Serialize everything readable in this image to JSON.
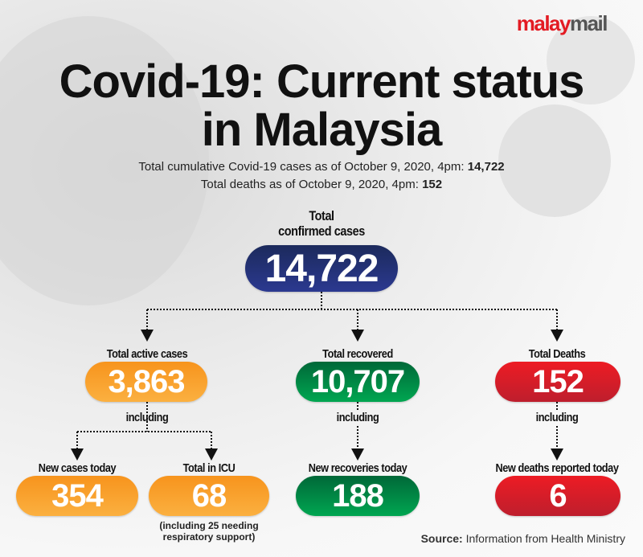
{
  "logo": {
    "part1": "malay",
    "part2": "mail"
  },
  "title": {
    "line1": "Covid-19: Current status",
    "line2": "in Malaysia"
  },
  "subtitle": {
    "cumulative_label": "Total cumulative Covid-19 cases as of October 9, 2020, 4pm:",
    "cumulative_value": "14,722",
    "deaths_label": "Total deaths as of October 9, 2020, 4pm:",
    "deaths_value": "152"
  },
  "total": {
    "label_line1": "Total",
    "label_line2": "confirmed cases",
    "value": "14,722"
  },
  "active": {
    "label": "Total active cases",
    "value": "3,863",
    "including": "including"
  },
  "recovered": {
    "label": "Total recovered",
    "value": "10,707",
    "including": "including"
  },
  "deaths": {
    "label": "Total Deaths",
    "value": "152",
    "including": "including"
  },
  "new_cases": {
    "label": "New cases today",
    "value": "354"
  },
  "icu": {
    "label": "Total in ICU",
    "value": "68",
    "note_line1": "(including 25 needing",
    "note_line2": "respiratory support)"
  },
  "new_recoveries": {
    "label": "New recoveries today",
    "value": "188"
  },
  "new_deaths": {
    "label": "New deaths reported today",
    "value": "6"
  },
  "source": {
    "label": "Source:",
    "text": "Information from Health Ministry"
  },
  "colors": {
    "orange": "#f7941d",
    "green": "#00a651",
    "red": "#ed1c24",
    "navy": "#1c2a5c",
    "logo_red": "#e31b23"
  }
}
